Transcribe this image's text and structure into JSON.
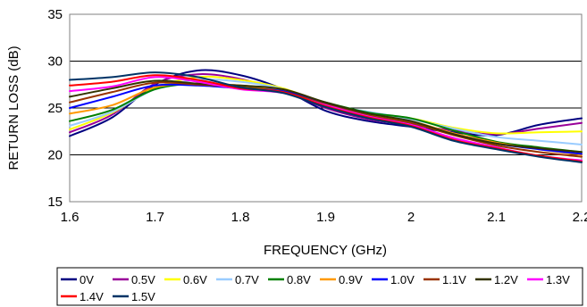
{
  "chart_data": {
    "type": "line",
    "title": "",
    "xlabel": "FREQUENCY (GHz)",
    "ylabel": "RETURN LOSS (dB)",
    "xlim": [
      1.6,
      2.2
    ],
    "ylim": [
      15,
      35
    ],
    "x_ticks": [
      "1.6",
      "1.7",
      "1.8",
      "1.9",
      "2",
      "2.1",
      "2.2"
    ],
    "y_ticks": [
      "15",
      "20",
      "25",
      "30",
      "35"
    ],
    "grid": "horizontal",
    "legend_position": "bottom",
    "x": [
      1.6,
      1.65,
      1.7,
      1.75,
      1.8,
      1.85,
      1.9,
      1.95,
      2.0,
      2.05,
      2.1,
      2.15,
      2.2
    ],
    "series": [
      {
        "name": "0V",
        "color": "#000080",
        "values": [
          22.0,
          24.0,
          27.5,
          29.0,
          28.5,
          27.0,
          24.7,
          23.6,
          23.0,
          22.4,
          22.1,
          23.2,
          23.9
        ]
      },
      {
        "name": "0.5V",
        "color": "#990099",
        "values": [
          22.4,
          24.3,
          27.6,
          28.6,
          28.1,
          26.8,
          25.0,
          23.8,
          23.2,
          22.6,
          22.2,
          22.8,
          23.4
        ]
      },
      {
        "name": "0.6V",
        "color": "#FFFF00",
        "values": [
          22.7,
          24.5,
          27.1,
          28.3,
          28.0,
          27.1,
          25.5,
          24.4,
          23.9,
          22.9,
          22.3,
          22.4,
          22.5
        ]
      },
      {
        "name": "0.7V",
        "color": "#99CCFF",
        "values": [
          23.1,
          24.6,
          27.0,
          28.0,
          27.8,
          27.0,
          25.4,
          24.6,
          23.8,
          22.8,
          21.9,
          21.5,
          21.1
        ]
      },
      {
        "name": "0.8V",
        "color": "#008000",
        "values": [
          23.6,
          24.8,
          27.0,
          27.6,
          27.3,
          26.8,
          25.6,
          24.5,
          23.9,
          22.6,
          21.4,
          20.8,
          20.3
        ]
      },
      {
        "name": "0.9V",
        "color": "#FF9900",
        "values": [
          24.4,
          25.3,
          27.2,
          27.6,
          27.4,
          26.9,
          25.5,
          24.3,
          23.6,
          22.3,
          21.3,
          20.6,
          20.0
        ]
      },
      {
        "name": "1.0V",
        "color": "#0000FF",
        "values": [
          25.0,
          26.2,
          27.4,
          27.4,
          27.1,
          26.8,
          25.5,
          24.1,
          23.4,
          22.2,
          21.2,
          20.6,
          20.1
        ]
      },
      {
        "name": "1.1V",
        "color": "#993300",
        "values": [
          25.6,
          26.7,
          27.7,
          27.5,
          27.2,
          26.7,
          25.4,
          24.2,
          23.4,
          22.1,
          21.0,
          20.3,
          19.8
        ]
      },
      {
        "name": "1.2V",
        "color": "#333300",
        "values": [
          26.2,
          27.1,
          27.9,
          27.6,
          27.4,
          27.0,
          25.6,
          24.4,
          23.6,
          22.2,
          21.2,
          20.7,
          20.3
        ]
      },
      {
        "name": "1.3V",
        "color": "#FF00FF",
        "values": [
          26.8,
          27.3,
          28.3,
          27.8,
          27.0,
          26.6,
          25.3,
          24.1,
          23.2,
          21.8,
          20.8,
          19.9,
          19.4
        ]
      },
      {
        "name": "1.4V",
        "color": "#FF0000",
        "values": [
          27.4,
          27.8,
          28.5,
          28.0,
          27.1,
          26.7,
          25.2,
          24.0,
          23.1,
          21.6,
          20.7,
          19.9,
          19.3
        ]
      },
      {
        "name": "1.5V",
        "color": "#003366",
        "values": [
          28.0,
          28.3,
          28.8,
          28.3,
          27.2,
          26.6,
          25.1,
          23.9,
          23.0,
          21.5,
          20.6,
          19.8,
          19.2
        ]
      }
    ]
  }
}
